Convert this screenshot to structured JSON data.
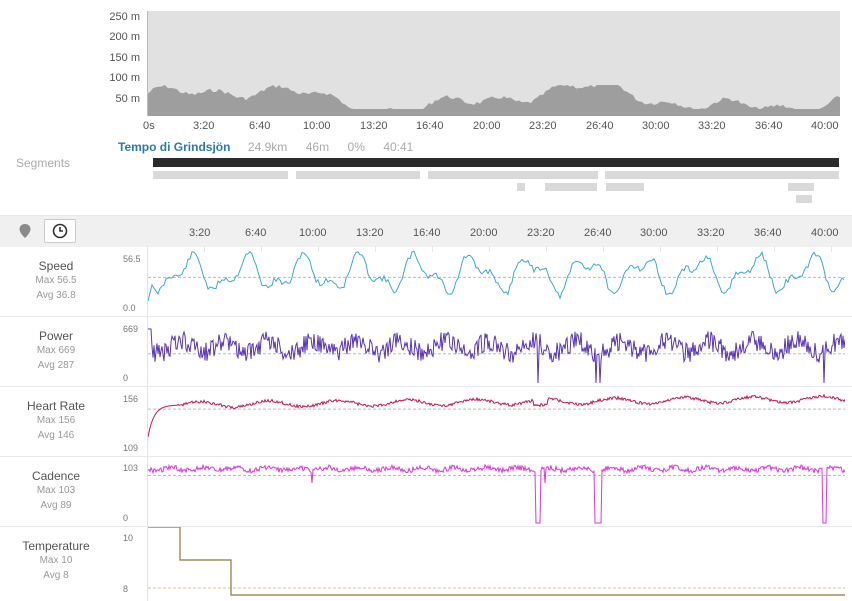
{
  "elevation": {
    "y_ticks": [
      "250 m",
      "200 m",
      "150 m",
      "100 m",
      "50 m"
    ],
    "x_ticks": [
      "0s",
      "3:20",
      "6:40",
      "10:00",
      "13:20",
      "16:40",
      "20:00",
      "23:20",
      "26:40",
      "30:00",
      "33:20",
      "36:40",
      "40:00"
    ],
    "fill_color": "#9e9e9e",
    "bg_color": "#e1e1e1"
  },
  "segments": {
    "label": "Segments",
    "selected": {
      "name": "Tempo di Grindsjön",
      "distance": "24.9km",
      "elevation": "46m",
      "grade": "0%",
      "time": "40:41"
    }
  },
  "toolbar": {
    "map_icon": "map-pin-icon",
    "time_icon": "clock-icon"
  },
  "time_axis": {
    "ticks": [
      "3:20",
      "6:40",
      "10:00",
      "13:20",
      "16:40",
      "20:00",
      "23:20",
      "26:40",
      "30:00",
      "33:20",
      "36:40",
      "40:00"
    ]
  },
  "metrics": [
    {
      "name": "Speed",
      "max": "Max 56.5",
      "avg": "Avg 36.8",
      "top": "56.5",
      "bottom": "0.0",
      "color": "#3aa8d8"
    },
    {
      "name": "Power",
      "max": "Max 669",
      "avg": "Avg 287",
      "top": "669",
      "bottom": "0",
      "color": "#5a32c0"
    },
    {
      "name": "Heart Rate",
      "max": "Max 156",
      "avg": "Avg 146",
      "top": "156",
      "bottom": "109",
      "color": "#c8164a"
    },
    {
      "name": "Cadence",
      "max": "Max 103",
      "avg": "Avg 89",
      "top": "103",
      "bottom": "0",
      "color": "#e033e0"
    },
    {
      "name": "Temperature",
      "max": "Max 10",
      "avg": "Avg 8",
      "top": "10",
      "bottom": "8",
      "color": "#8a7a3a"
    }
  ]
}
